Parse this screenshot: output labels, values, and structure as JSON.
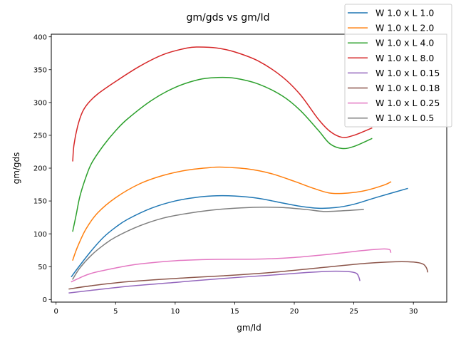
{
  "chart_data": {
    "type": "line",
    "title": "gm/gds vs gm/Id",
    "xlabel": "gm/Id",
    "ylabel": "gm/gds",
    "xlim": [
      -0.4,
      32.8
    ],
    "ylim": [
      -4,
      404
    ],
    "xticks": [
      0,
      5,
      10,
      15,
      20,
      25,
      30
    ],
    "yticks": [
      0,
      50,
      100,
      150,
      200,
      250,
      300,
      350,
      400
    ],
    "grid": false,
    "legend_position": "top-right",
    "series": [
      {
        "name": "W 1.0 x L 1.0",
        "color": "#1f77b4",
        "points": [
          [
            1.3,
            35
          ],
          [
            2,
            52
          ],
          [
            3,
            75
          ],
          [
            4,
            95
          ],
          [
            5,
            110
          ],
          [
            6,
            122
          ],
          [
            8,
            139
          ],
          [
            10,
            150
          ],
          [
            12,
            156
          ],
          [
            13.5,
            158
          ],
          [
            15,
            157.5
          ],
          [
            17,
            154
          ],
          [
            19,
            147
          ],
          [
            20.5,
            142
          ],
          [
            22,
            139
          ],
          [
            23.5,
            140
          ],
          [
            25,
            145
          ],
          [
            27,
            156
          ],
          [
            29.5,
            169
          ]
        ]
      },
      {
        "name": "W 1.0 x L 2.0",
        "color": "#ff7f0e",
        "points": [
          [
            1.4,
            60
          ],
          [
            1.8,
            80
          ],
          [
            2.5,
            107
          ],
          [
            3.5,
            132
          ],
          [
            5,
            155
          ],
          [
            7,
            176
          ],
          [
            9,
            189
          ],
          [
            11,
            197
          ],
          [
            13,
            201
          ],
          [
            14,
            201.5
          ],
          [
            16,
            199
          ],
          [
            18,
            192
          ],
          [
            20,
            180
          ],
          [
            21.5,
            170
          ],
          [
            23,
            162
          ],
          [
            24.5,
            162
          ],
          [
            26,
            166
          ],
          [
            27.5,
            174
          ],
          [
            28.1,
            179
          ]
        ]
      },
      {
        "name": "W 1.0 x L 4.0",
        "color": "#2ca02c",
        "points": [
          [
            1.4,
            104
          ],
          [
            1.7,
            130
          ],
          [
            2,
            157
          ],
          [
            2.5,
            186
          ],
          [
            3,
            208
          ],
          [
            4,
            235
          ],
          [
            5,
            257
          ],
          [
            6,
            275
          ],
          [
            8,
            303
          ],
          [
            10,
            323
          ],
          [
            12,
            335
          ],
          [
            13.5,
            338
          ],
          [
            15,
            337
          ],
          [
            17,
            328
          ],
          [
            19,
            310
          ],
          [
            20.5,
            288
          ],
          [
            22,
            258
          ],
          [
            23,
            237
          ],
          [
            24,
            230
          ],
          [
            25,
            233
          ],
          [
            26.5,
            245
          ]
        ]
      },
      {
        "name": "W 1.0 x L 8.0",
        "color": "#d62728",
        "points": [
          [
            1.4,
            211
          ],
          [
            1.5,
            235
          ],
          [
            1.8,
            263
          ],
          [
            2.2,
            285
          ],
          [
            2.7,
            299
          ],
          [
            3.5,
            313
          ],
          [
            5,
            332
          ],
          [
            7,
            355
          ],
          [
            9,
            373
          ],
          [
            11,
            383
          ],
          [
            12,
            384.5
          ],
          [
            13.5,
            383
          ],
          [
            15,
            377
          ],
          [
            17,
            363
          ],
          [
            19,
            339
          ],
          [
            20.5,
            312
          ],
          [
            22,
            275
          ],
          [
            23,
            256
          ],
          [
            24,
            247
          ],
          [
            25,
            250
          ],
          [
            26.5,
            261
          ]
        ]
      },
      {
        "name": "W 1.0 x L 0.15",
        "color": "#9467bd",
        "points": [
          [
            1.1,
            10
          ],
          [
            3,
            14
          ],
          [
            6,
            20
          ],
          [
            10,
            26
          ],
          [
            14,
            32
          ],
          [
            18,
            37
          ],
          [
            21,
            41
          ],
          [
            23,
            43
          ],
          [
            24.5,
            42.5
          ],
          [
            25.2,
            40
          ],
          [
            25.4,
            35
          ],
          [
            25.5,
            29
          ]
        ]
      },
      {
        "name": "W 1.0 x L 0.18",
        "color": "#8c564b",
        "points": [
          [
            1.1,
            16
          ],
          [
            3,
            21
          ],
          [
            6,
            27
          ],
          [
            10,
            32
          ],
          [
            14,
            36
          ],
          [
            18,
            41
          ],
          [
            22,
            48
          ],
          [
            26,
            55
          ],
          [
            28.5,
            57.5
          ],
          [
            30,
            57
          ],
          [
            30.8,
            54
          ],
          [
            31.1,
            48
          ],
          [
            31.2,
            42
          ]
        ]
      },
      {
        "name": "W 1.0 x L 0.25",
        "color": "#e377c2",
        "points": [
          [
            1.3,
            27
          ],
          [
            2,
            33
          ],
          [
            3,
            40
          ],
          [
            5,
            48
          ],
          [
            7,
            54
          ],
          [
            10,
            59
          ],
          [
            13,
            61
          ],
          [
            17,
            61.5
          ],
          [
            20,
            64
          ],
          [
            23,
            69
          ],
          [
            26,
            75
          ],
          [
            27.5,
            77
          ],
          [
            28,
            76
          ],
          [
            28.1,
            72
          ]
        ]
      },
      {
        "name": "W 1.0 x L 0.5",
        "color": "#7f7f7f",
        "points": [
          [
            1.4,
            31
          ],
          [
            2,
            48
          ],
          [
            3,
            68
          ],
          [
            4,
            83
          ],
          [
            5,
            95
          ],
          [
            7,
            112
          ],
          [
            9,
            124
          ],
          [
            11,
            131
          ],
          [
            13,
            136
          ],
          [
            15,
            139
          ],
          [
            17,
            140.5
          ],
          [
            19,
            140
          ],
          [
            21,
            137
          ],
          [
            22.5,
            134
          ],
          [
            24,
            135
          ],
          [
            25.8,
            137
          ]
        ]
      }
    ]
  }
}
